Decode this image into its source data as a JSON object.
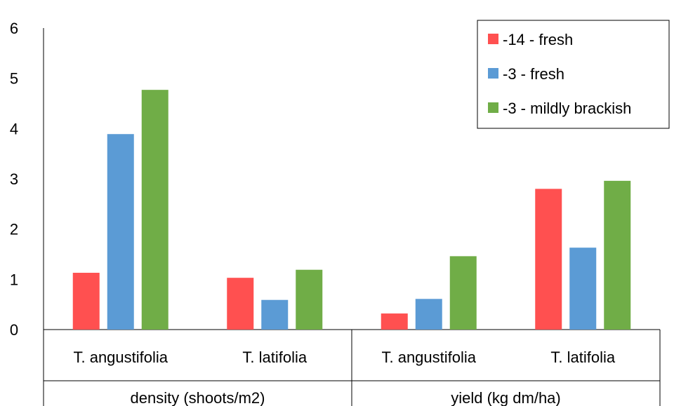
{
  "chart_data": {
    "type": "bar",
    "title": "",
    "xlabel": "",
    "ylabel": "",
    "ylim": [
      0,
      6
    ],
    "yticks": [
      "0",
      "1",
      "2",
      "3",
      "4",
      "5",
      "6"
    ],
    "grid": false,
    "legend_position": "top-right",
    "categories": [
      "T. angustifolia",
      "T. latifolia",
      "T. angustifolia",
      "T. latifolia"
    ],
    "groups": [
      {
        "label": "density (shoots/m2)",
        "categories": [
          "T. angustifolia",
          "T. latifolia"
        ]
      },
      {
        "label": "yield (kg dm/ha)",
        "categories": [
          "T. angustifolia",
          "T. latifolia"
        ]
      }
    ],
    "series": [
      {
        "name": "-14 - fresh",
        "color": "#ff5050",
        "values": [
          1.13,
          1.03,
          0.32,
          2.8
        ]
      },
      {
        "name": "-3 - fresh",
        "color": "#5b9bd5",
        "values": [
          3.89,
          0.59,
          0.61,
          1.63
        ]
      },
      {
        "name": "-3 - mildly brackish",
        "color": "#70ad47",
        "values": [
          4.77,
          1.19,
          1.46,
          2.96
        ]
      }
    ]
  }
}
